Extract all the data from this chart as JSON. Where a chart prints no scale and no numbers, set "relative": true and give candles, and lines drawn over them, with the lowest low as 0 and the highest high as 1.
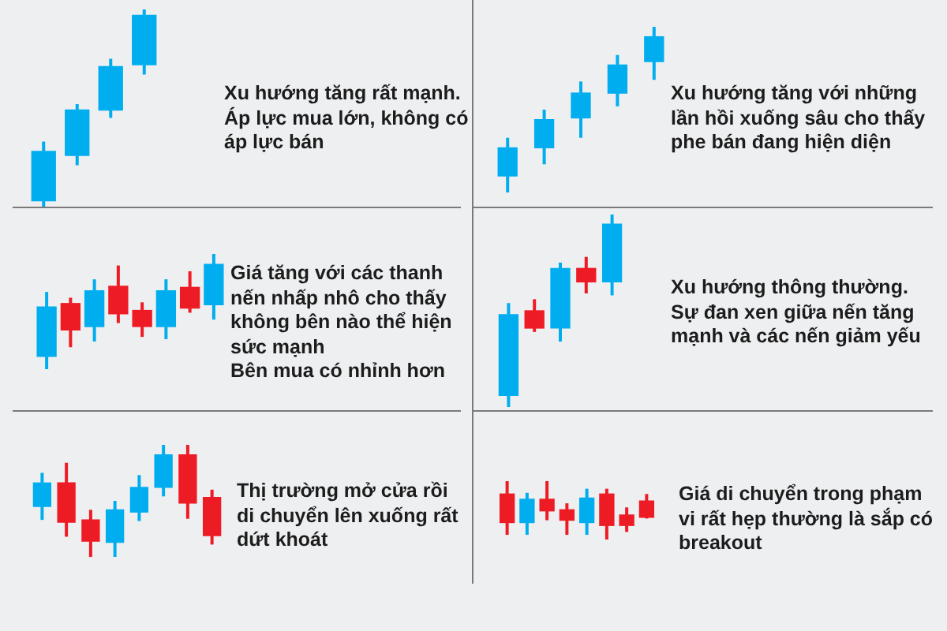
{
  "chart_data": [
    {
      "type": "candlestick",
      "relative": true,
      "tick_labels": false,
      "categories": [
        null,
        null,
        null,
        null
      ],
      "ohlc": [
        [
          0.03,
          0.33,
          0,
          0.28
        ],
        [
          0.26,
          0.52,
          0.21,
          0.49
        ],
        [
          0.49,
          0.75,
          0.45,
          0.71
        ],
        [
          0.72,
          1,
          0.67,
          0.97
        ]
      ],
      "colors": [
        "#00aeef",
        "#00aeef",
        "#00aeef",
        "#00aeef"
      ],
      "annotations": [
        "Xu hướng tăng rất mạnh.",
        "Áp lực mua lớn, không có áp lực bán"
      ]
    },
    {
      "type": "candlestick",
      "relative": true,
      "tick_labels": false,
      "categories": [
        null,
        null,
        null,
        null,
        null
      ],
      "ohlc": [
        [
          0.1,
          0.33,
          0,
          0.27
        ],
        [
          0.27,
          0.5,
          0.17,
          0.44
        ],
        [
          0.45,
          0.67,
          0.33,
          0.6
        ],
        [
          0.6,
          0.83,
          0.52,
          0.77
        ],
        [
          0.79,
          1,
          0.68,
          0.94
        ]
      ],
      "colors": [
        "#00aeef",
        "#00aeef",
        "#00aeef",
        "#00aeef",
        "#00aeef"
      ],
      "annotations": [
        "Xu hướng tăng với những lần hồi xuống sâu cho thấy phe bán đang hiện diện"
      ]
    },
    {
      "type": "candlestick",
      "relative": true,
      "tick_labels": false,
      "categories": [
        null,
        null,
        null,
        null,
        null,
        null,
        null,
        null
      ],
      "ohlc": [
        [
          0.11,
          0.67,
          0,
          0.54
        ],
        [
          0.57,
          0.62,
          0.19,
          0.34
        ],
        [
          0.37,
          0.78,
          0.24,
          0.68
        ],
        [
          0.72,
          0.9,
          0.4,
          0.48
        ],
        [
          0.51,
          0.58,
          0.28,
          0.37
        ],
        [
          0.37,
          0.78,
          0.26,
          0.68
        ],
        [
          0.71,
          0.85,
          0.49,
          0.53
        ],
        [
          0.56,
          1,
          0.43,
          0.91
        ]
      ],
      "colors": [
        "#00aeef",
        "#ed1c24",
        "#00aeef",
        "#ed1c24",
        "#ed1c24",
        "#00aeef",
        "#ed1c24",
        "#00aeef"
      ],
      "annotations": [
        "Giá tăng với các thanh nến nhấp nhô cho thấy không bên nào thể hiện sức mạnh",
        "Bên mua có nhỉnh hơn"
      ]
    },
    {
      "type": "candlestick",
      "relative": true,
      "tick_labels": false,
      "categories": [
        null,
        null,
        null,
        null,
        null
      ],
      "ohlc": [
        [
          0.06,
          0.54,
          0,
          0.48
        ],
        [
          0.5,
          0.56,
          0.39,
          0.41
        ],
        [
          0.41,
          0.75,
          0.34,
          0.72
        ],
        [
          0.72,
          0.78,
          0.59,
          0.65
        ],
        [
          0.65,
          1,
          0.58,
          0.95
        ]
      ],
      "colors": [
        "#00aeef",
        "#ed1c24",
        "#00aeef",
        "#ed1c24",
        "#00aeef"
      ],
      "annotations": [
        "Xu hướng thông thường.",
        "Sự đan xen giữa nến tăng mạnh và các nến giảm yếu"
      ]
    },
    {
      "type": "candlestick",
      "relative": true,
      "tick_labels": false,
      "categories": [
        null,
        null,
        null,
        null,
        null,
        null,
        null,
        null
      ],
      "ohlc": [
        [
          0.45,
          0.75,
          0.33,
          0.66
        ],
        [
          0.66,
          0.84,
          0.18,
          0.31
        ],
        [
          0.33,
          0.42,
          0,
          0.14
        ],
        [
          0.13,
          0.5,
          0,
          0.42
        ],
        [
          0.4,
          0.73,
          0.32,
          0.62
        ],
        [
          0.62,
          1,
          0.54,
          0.91
        ],
        [
          0.91,
          1,
          0.34,
          0.48
        ],
        [
          0.53,
          0.6,
          0.11,
          0.19
        ]
      ],
      "colors": [
        "#00aeef",
        "#ed1c24",
        "#ed1c24",
        "#00aeef",
        "#00aeef",
        "#00aeef",
        "#ed1c24",
        "#ed1c24"
      ],
      "annotations": [
        "Thị trường mở cửa rồi di chuyển lên xuống rất dứt khoát"
      ]
    },
    {
      "type": "candlestick",
      "relative": true,
      "tick_labels": false,
      "categories": [
        null,
        null,
        null,
        null,
        null,
        null,
        null,
        null
      ],
      "ohlc": [
        [
          0.78,
          1,
          0.08,
          0.29
        ],
        [
          0.29,
          0.8,
          0.08,
          0.69
        ],
        [
          0.69,
          1,
          0.33,
          0.49
        ],
        [
          0.51,
          0.62,
          0.08,
          0.33
        ],
        [
          0.29,
          0.87,
          0.08,
          0.71
        ],
        [
          0.78,
          0.87,
          0,
          0.24
        ],
        [
          0.42,
          0.55,
          0.13,
          0.24
        ],
        [
          0.66,
          0.78,
          0.36,
          0.38
        ]
      ],
      "colors": [
        "#ed1c24",
        "#00aeef",
        "#ed1c24",
        "#ed1c24",
        "#00aeef",
        "#ed1c24",
        "#ed1c24",
        "#ed1c24"
      ],
      "annotations": [
        "Giá di chuyển trong phạm vi rất hẹp thường là sắp có breakout"
      ]
    }
  ]
}
